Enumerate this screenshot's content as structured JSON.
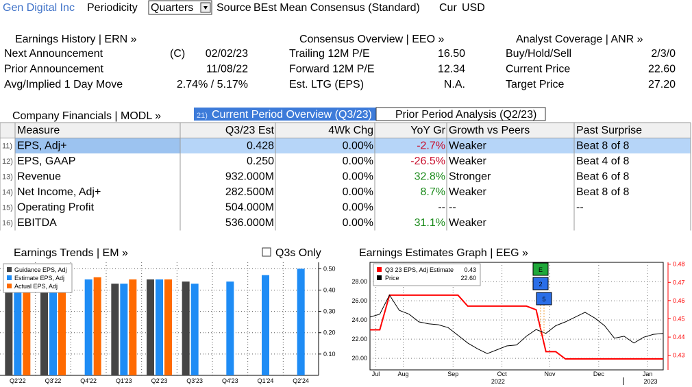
{
  "header": {
    "company": "Gen Digital Inc",
    "periodicity_label": "Periodicity",
    "periodicity": "Quarters",
    "source_label": "Source",
    "source": "BEst Mean Consensus (Standard)",
    "cur_label": "Cur",
    "cur": "USD"
  },
  "sections": [
    {
      "title": "Earnings History | ERN »",
      "rows": [
        {
          "label": "Next Announcement",
          "note": "(C)",
          "value": "02/02/23"
        },
        {
          "label": "Prior Announcement",
          "value": "11/08/22"
        },
        {
          "label": "Avg/Implied 1 Day Move",
          "value": "2.74% / 5.17%"
        }
      ]
    },
    {
      "title": "Consensus Overview | EEO »",
      "rows": [
        {
          "label": "Trailing 12M P/E",
          "value": "16.50"
        },
        {
          "label": "Forward 12M P/E",
          "value": "12.34"
        },
        {
          "label": "Est. LTG (EPS)",
          "value": "N.A."
        }
      ]
    },
    {
      "title": "Analyst Coverage | ANR »",
      "rows": [
        {
          "label": "Buy/Hold/Sell",
          "value": "2/3/0"
        },
        {
          "label": "Current Price",
          "value": "22.60"
        },
        {
          "label": "Target Price",
          "value": "27.20"
        }
      ]
    }
  ],
  "financials_title": "Company Financials | MODL »",
  "tabs": [
    {
      "num": "21)",
      "label": "Current Period Overview (Q3/23)"
    },
    {
      "label": "Prior Period Analysis (Q2/23)"
    }
  ],
  "table": {
    "columns": [
      "Measure",
      "Q3/23 Est",
      "4Wk Chg",
      "YoY Gr",
      "Growth vs Peers",
      "Past Surprise"
    ],
    "rows": [
      {
        "num": "11)",
        "cells": [
          "EPS, Adj+",
          "0.428",
          "0.00%",
          "-2.7%",
          "Weaker",
          "Beat 8 of 8"
        ]
      },
      {
        "num": "12)",
        "cells": [
          "EPS, GAAP",
          "0.250",
          "0.00%",
          "-26.5%",
          "Weaker",
          "Beat 4 of 8"
        ]
      },
      {
        "num": "13)",
        "cells": [
          "Revenue",
          "932.000M",
          "0.00%",
          "32.8%",
          "Stronger",
          "Beat 6 of 8"
        ]
      },
      {
        "num": "14)",
        "cells": [
          "Net Income, Adj+",
          "282.500M",
          "0.00%",
          "8.7%",
          "Weaker",
          "Beat 8 of 8"
        ]
      },
      {
        "num": "15)",
        "cells": [
          "Operating Profit",
          "504.000M",
          "0.00%",
          "--",
          "--",
          "--"
        ]
      },
      {
        "num": "16)",
        "cells": [
          "EBITDA",
          "536.000M",
          "0.00%",
          "31.1%",
          "Weaker"
        ]
      }
    ]
  },
  "trends_title": "Earnings Trends | EM »",
  "trends_option": "Q3s Only",
  "eeg_title": "Earnings Estimates Graph | EEG »",
  "chart_data": [
    {
      "type": "bar",
      "categories": [
        "Q2'22",
        "Q3'22",
        "Q4'22",
        "Q1'23",
        "Q2'23",
        "Q3'23",
        "Q4'23",
        "Q1'24",
        "Q2'24"
      ],
      "series": [
        {
          "name": "Guidance EPS, Adj",
          "color": "#454545",
          "values": [
            0.42,
            0.43,
            null,
            0.43,
            0.45,
            0.44,
            null,
            null,
            null
          ]
        },
        {
          "name": "Estimate EPS, Adj",
          "color": "#1e8cf5",
          "values": [
            0.43,
            0.44,
            0.45,
            0.43,
            0.45,
            0.43,
            0.44,
            0.47,
            0.5
          ]
        },
        {
          "name": "Actual EPS, Adj",
          "color": "#ff6a00",
          "values": [
            0.44,
            0.45,
            0.46,
            0.45,
            0.45,
            null,
            null,
            null,
            null
          ]
        }
      ],
      "ylim": [
        0,
        0.53
      ],
      "yticks": [
        {
          "value": 0.1,
          "label": "0.10"
        },
        {
          "value": 0.2,
          "label": "0.20"
        },
        {
          "value": 0.3,
          "label": "0.30"
        },
        {
          "value": 0.4,
          "label": "0.40"
        },
        {
          "value": 0.5,
          "label": "0.50"
        }
      ],
      "grid": true,
      "legend": "top-left"
    },
    {
      "type": "line",
      "xlim": [
        0,
        30
      ],
      "xticks": [
        {
          "value": 0.6,
          "label": "Jul"
        },
        {
          "value": 3.4,
          "label": "Aug"
        },
        {
          "value": 8.5,
          "label": "Sep"
        },
        {
          "value": 13.5,
          "label": "Oct"
        },
        {
          "value": 18.4,
          "label": "Nov"
        },
        {
          "value": 23.4,
          "label": "Dec"
        },
        {
          "value": 28.4,
          "label": "Jan"
        }
      ],
      "year_ticks": [
        {
          "value": 13.1,
          "label": "2022"
        },
        {
          "value": 28.7,
          "label": "2023"
        }
      ],
      "series": [
        {
          "name": "Q3 23 EPS, Adj Estimate",
          "legend_value": "0.43",
          "color": "#ff0000",
          "axis": "y2",
          "values": [
            0.444,
            0.444,
            0.463,
            0.463,
            0.463,
            0.463,
            0.463,
            0.463,
            0.463,
            0.463,
            0.457,
            0.457,
            0.457,
            0.457,
            0.457,
            0.457,
            0.457,
            0.455,
            0.432,
            0.432,
            0.428,
            0.428,
            0.428,
            0.428,
            0.428,
            0.428,
            0.428,
            0.428,
            0.428,
            0.428,
            0.428
          ]
        },
        {
          "name": "Price",
          "legend_value": "22.60",
          "color": "#000000",
          "values": [
            24.3,
            24.6,
            26.6,
            25.0,
            24.6,
            23.8,
            23.6,
            23.5,
            23.2,
            22.4,
            21.6,
            21.0,
            20.5,
            20.9,
            21.3,
            21.4,
            22.3,
            23.0,
            22.6,
            23.4,
            23.8,
            24.3,
            24.8,
            24.2,
            23.4,
            22.1,
            22.3,
            21.6,
            22.2,
            22.5,
            22.6
          ]
        }
      ],
      "ylim": [
        18.8,
        30
      ],
      "yticks": [
        {
          "value": 20,
          "label": "20.00"
        },
        {
          "value": 22,
          "label": "22.00"
        },
        {
          "value": 24,
          "label": "24.00"
        },
        {
          "value": 26,
          "label": "26.00"
        },
        {
          "value": 28,
          "label": "28.00"
        }
      ],
      "y2lim": [
        0.422,
        0.481
      ],
      "y2ticks": [
        0.43,
        0.44,
        0.45,
        0.46,
        0.47,
        0.48
      ],
      "grid": true,
      "legend": "top-left",
      "annotations": [
        "E",
        "2",
        "5"
      ]
    }
  ]
}
